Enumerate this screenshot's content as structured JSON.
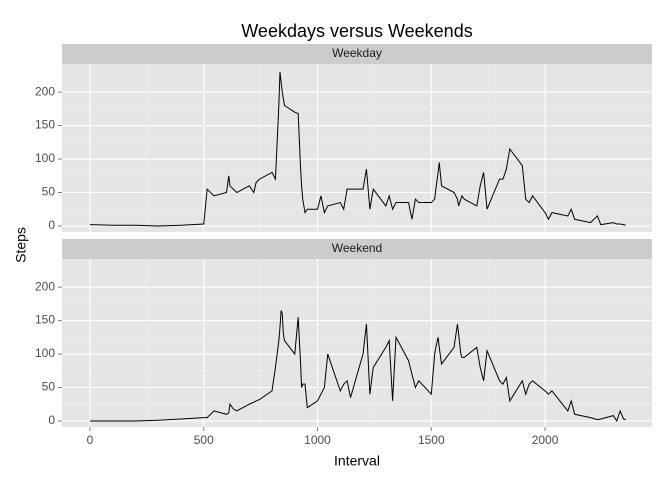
{
  "chart_data": {
    "type": "line",
    "title": "Weekdays versus Weekends",
    "x_label": "Interval",
    "y_label": "Steps",
    "facets": true,
    "grid": true,
    "x": [
      0,
      100,
      200,
      300,
      400,
      500,
      515,
      545,
      600,
      610,
      615,
      630,
      645,
      700,
      720,
      730,
      745,
      800,
      815,
      830,
      835,
      840,
      845,
      850,
      855,
      900,
      915,
      925,
      930,
      935,
      945,
      955,
      1000,
      1015,
      1030,
      1045,
      1100,
      1115,
      1130,
      1145,
      1200,
      1215,
      1230,
      1245,
      1300,
      1315,
      1330,
      1345,
      1400,
      1415,
      1430,
      1445,
      1500,
      1515,
      1520,
      1530,
      1535,
      1545,
      1600,
      1615,
      1620,
      1630,
      1635,
      1645,
      1700,
      1715,
      1730,
      1745,
      1800,
      1815,
      1830,
      1845,
      1900,
      1915,
      1930,
      1945,
      2000,
      2015,
      2030,
      2100,
      2115,
      2130,
      2200,
      2230,
      2245,
      2300,
      2315,
      2330,
      2345,
      2355
    ],
    "series": [
      {
        "name": "Weekday",
        "color": "#000000",
        "values": [
          2,
          1,
          1,
          0,
          1,
          3,
          55,
          45,
          50,
          75,
          60,
          55,
          50,
          60,
          50,
          65,
          70,
          80,
          70,
          180,
          230,
          215,
          200,
          190,
          180,
          170,
          168,
          90,
          60,
          40,
          20,
          25,
          25,
          45,
          20,
          30,
          35,
          25,
          55,
          55,
          55,
          85,
          25,
          55,
          30,
          45,
          25,
          35,
          35,
          10,
          40,
          35,
          35,
          40,
          55,
          80,
          95,
          60,
          50,
          40,
          30,
          40,
          45,
          40,
          30,
          60,
          80,
          25,
          70,
          70,
          85,
          115,
          90,
          40,
          35,
          45,
          20,
          10,
          20,
          15,
          25,
          10,
          5,
          15,
          2,
          5,
          3,
          3,
          2,
          1
        ]
      },
      {
        "name": "Weekend",
        "color": "#000000",
        "values": [
          0,
          0,
          0,
          1,
          3,
          5,
          5,
          15,
          10,
          12,
          25,
          18,
          15,
          25,
          28,
          30,
          32,
          45,
          80,
          120,
          140,
          165,
          160,
          130,
          120,
          100,
          155,
          90,
          50,
          55,
          55,
          20,
          30,
          40,
          50,
          100,
          45,
          55,
          60,
          35,
          100,
          145,
          40,
          80,
          110,
          120,
          30,
          125,
          90,
          70,
          50,
          60,
          40,
          100,
          110,
          125,
          110,
          85,
          110,
          145,
          130,
          100,
          95,
          95,
          110,
          80,
          60,
          105,
          60,
          55,
          65,
          30,
          60,
          40,
          55,
          60,
          45,
          40,
          45,
          15,
          30,
          10,
          5,
          2,
          3,
          8,
          0,
          15,
          3,
          2
        ]
      }
    ],
    "xlim": [
      -123,
      2470
    ],
    "xticks": [
      0,
      500,
      1000,
      1500,
      2000
    ],
    "ylim": [
      -9,
      242
    ],
    "yticks": [
      0,
      50,
      100,
      150,
      200
    ]
  }
}
